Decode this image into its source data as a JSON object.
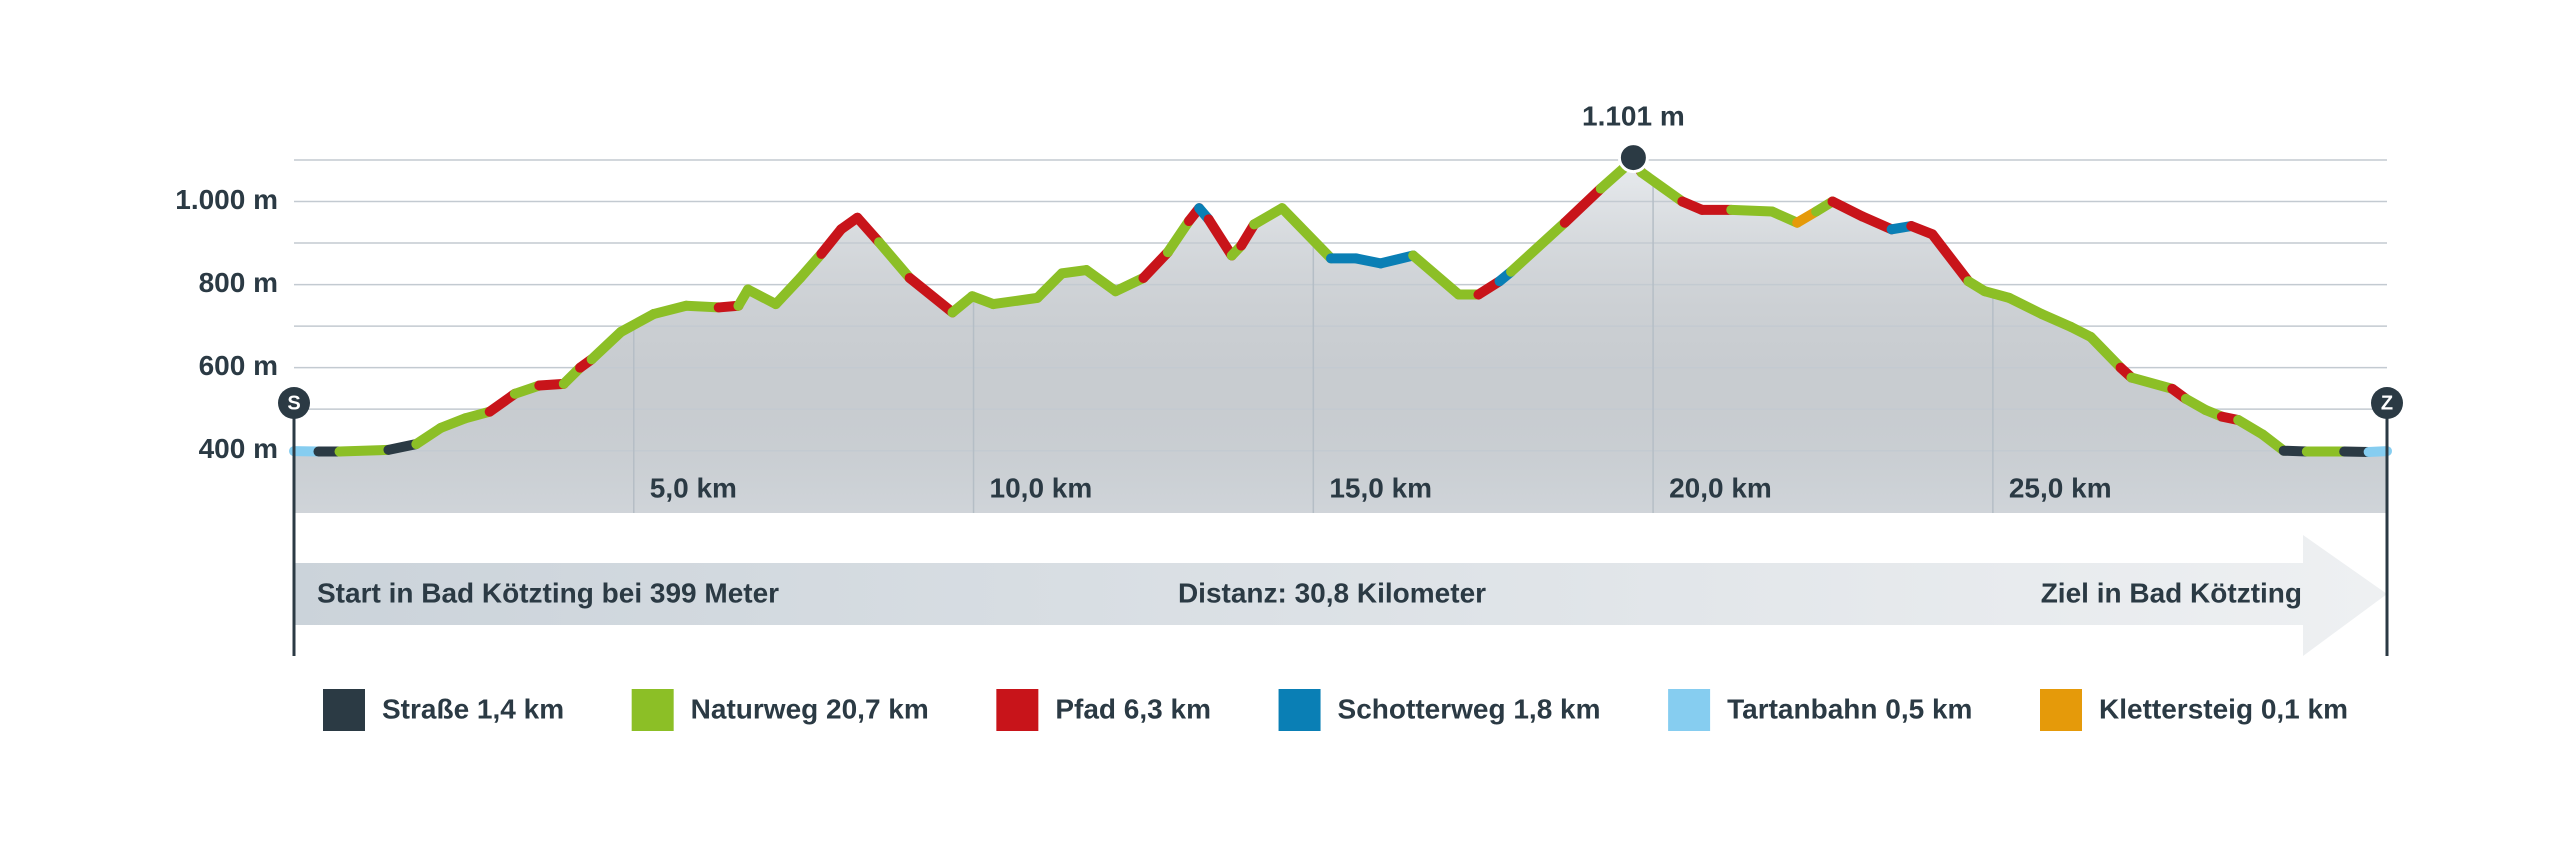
{
  "chart_data": {
    "type": "elevation-profile",
    "start_marker": "S",
    "end_marker": "Z",
    "start_text": "Start in Bad Kötzting bei 399 Meter",
    "distance_text": "Distanz: 30,8 Kilometer",
    "end_text": "Ziel in Bad Kötzting",
    "peak": {
      "x": 19.71,
      "value": 1101,
      "label": "1.101 m"
    },
    "xlim": [
      0,
      30.8
    ],
    "ylim": [
      250,
      1100
    ],
    "xticks": [
      {
        "value": 5,
        "label": "5,0 km"
      },
      {
        "value": 10,
        "label": "10,0 km"
      },
      {
        "value": 15,
        "label": "15,0 km"
      },
      {
        "value": 20,
        "label": "20,0 km"
      },
      {
        "value": 25,
        "label": "25,0 km"
      }
    ],
    "yticks": [
      {
        "value": 400,
        "label": "400 m"
      },
      {
        "value": 500,
        "label": null
      },
      {
        "value": 600,
        "label": "600 m"
      },
      {
        "value": 700,
        "label": null
      },
      {
        "value": 800,
        "label": "800 m"
      },
      {
        "value": 900,
        "label": null
      },
      {
        "value": 1000,
        "label": "1.000 m"
      },
      {
        "value": 1100,
        "label": null
      }
    ],
    "grid": true,
    "area_color": "#dde2e7",
    "legend": [
      {
        "name": "Straße 1,4 km",
        "color": "#2b3a44"
      },
      {
        "name": "Naturweg 20,7 km",
        "color": "#8cbf26"
      },
      {
        "name": "Pfad 6,3 km",
        "color": "#c8141a"
      },
      {
        "name": "Schotterweg 1,8 km",
        "color": "#0a7fb5"
      },
      {
        "name": "Tartanbahn 0,5 km",
        "color": "#86cdf0"
      },
      {
        "name": "Klettersteig 0,1 km",
        "color": "#e59a0a"
      }
    ],
    "x": [
      0,
      0.36,
      0.67,
      1.39,
      1.8,
      2.16,
      2.52,
      2.88,
      3.25,
      3.61,
      3.97,
      4.21,
      4.38,
      4.81,
      5.29,
      5.77,
      6.25,
      6.54,
      6.68,
      7.09,
      7.45,
      7.76,
      8.05,
      8.29,
      8.61,
      9.06,
      9.69,
      9.98,
      10.29,
      10.94,
      11.3,
      11.66,
      12.09,
      12.5,
      12.86,
      13.17,
      13.32,
      13.46,
      13.8,
      13.94,
      14.13,
      14.54,
      15.26,
      15.63,
      15.99,
      16.47,
      17.14,
      17.43,
      17.74,
      17.91,
      18.7,
      19.23,
      19.71,
      19.83,
      20.43,
      20.72,
      21.15,
      21.75,
      22.12,
      22.4,
      22.64,
      23.08,
      23.51,
      23.8,
      24.11,
      24.64,
      24.88,
      25.24,
      25.72,
      26.15,
      26.44,
      26.88,
      27.04,
      27.64,
      27.84,
      28.13,
      28.37,
      28.61,
      28.97,
      29.28,
      29.62,
      30.17,
      30.53,
      30.8
    ],
    "values": [
      399,
      398,
      398,
      402,
      416,
      455,
      478,
      494,
      537,
      557,
      561,
      600,
      620,
      686,
      729,
      749,
      745,
      749,
      788,
      753,
      816,
      874,
      933,
      961,
      902,
      816,
      733,
      772,
      753,
      768,
      827,
      835,
      784,
      816,
      878,
      953,
      984,
      957,
      870,
      894,
      945,
      984,
      863,
      863,
      851,
      870,
      776,
      776,
      808,
      831,
      949,
      1031,
      1101,
      1070,
      1000,
      980,
      980,
      976,
      949,
      976,
      1000,
      964,
      933,
      941,
      921,
      808,
      784,
      768,
      729,
      698,
      674,
      600,
      576,
      549,
      525,
      498,
      482,
      474,
      439,
      400,
      398,
      398,
      397,
      399
    ],
    "surface": [
      4,
      0,
      1,
      0,
      1,
      1,
      1,
      2,
      1,
      2,
      1,
      2,
      1,
      1,
      1,
      1,
      2,
      1,
      1,
      1,
      1,
      2,
      2,
      2,
      1,
      2,
      1,
      1,
      1,
      1,
      1,
      1,
      1,
      2,
      1,
      2,
      3,
      2,
      1,
      2,
      1,
      1,
      3,
      3,
      3,
      1,
      1,
      2,
      3,
      1,
      2,
      1,
      2,
      1,
      2,
      2,
      1,
      1,
      5,
      1,
      2,
      2,
      3,
      2,
      2,
      1,
      1,
      1,
      1,
      1,
      1,
      2,
      1,
      2,
      1,
      1,
      2,
      1,
      1,
      0,
      1,
      0,
      4
    ]
  }
}
